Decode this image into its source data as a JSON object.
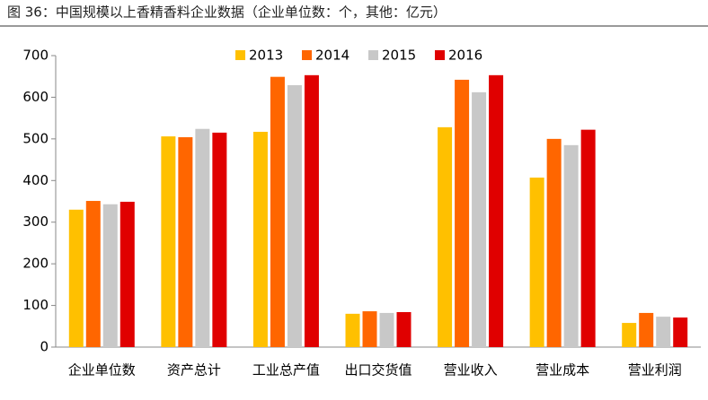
{
  "chart_data": {
    "type": "bar",
    "title": "图 36：中国规模以上香精香料企业数据（企业单位数：个，其他：亿元）",
    "categories": [
      "企业单位数",
      "资产总计",
      "工业总产值",
      "出口交货值",
      "营业收入",
      "营业成本",
      "营业利润"
    ],
    "series": [
      {
        "name": "2013",
        "color": "#FFC000",
        "values": [
          330,
          506,
          517,
          80,
          528,
          407,
          58
        ]
      },
      {
        "name": "2014",
        "color": "#FF6600",
        "values": [
          351,
          504,
          649,
          86,
          642,
          500,
          82
        ]
      },
      {
        "name": "2015",
        "color": "#C8C8C8",
        "values": [
          343,
          524,
          629,
          82,
          612,
          485,
          73
        ]
      },
      {
        "name": "2016",
        "color": "#E00000",
        "values": [
          349,
          515,
          653,
          84,
          653,
          522,
          71
        ]
      }
    ],
    "ylim": [
      0,
      700
    ],
    "yticks": [
      0,
      100,
      200,
      300,
      400,
      500,
      600,
      700
    ],
    "grid": false,
    "legend": "top"
  }
}
